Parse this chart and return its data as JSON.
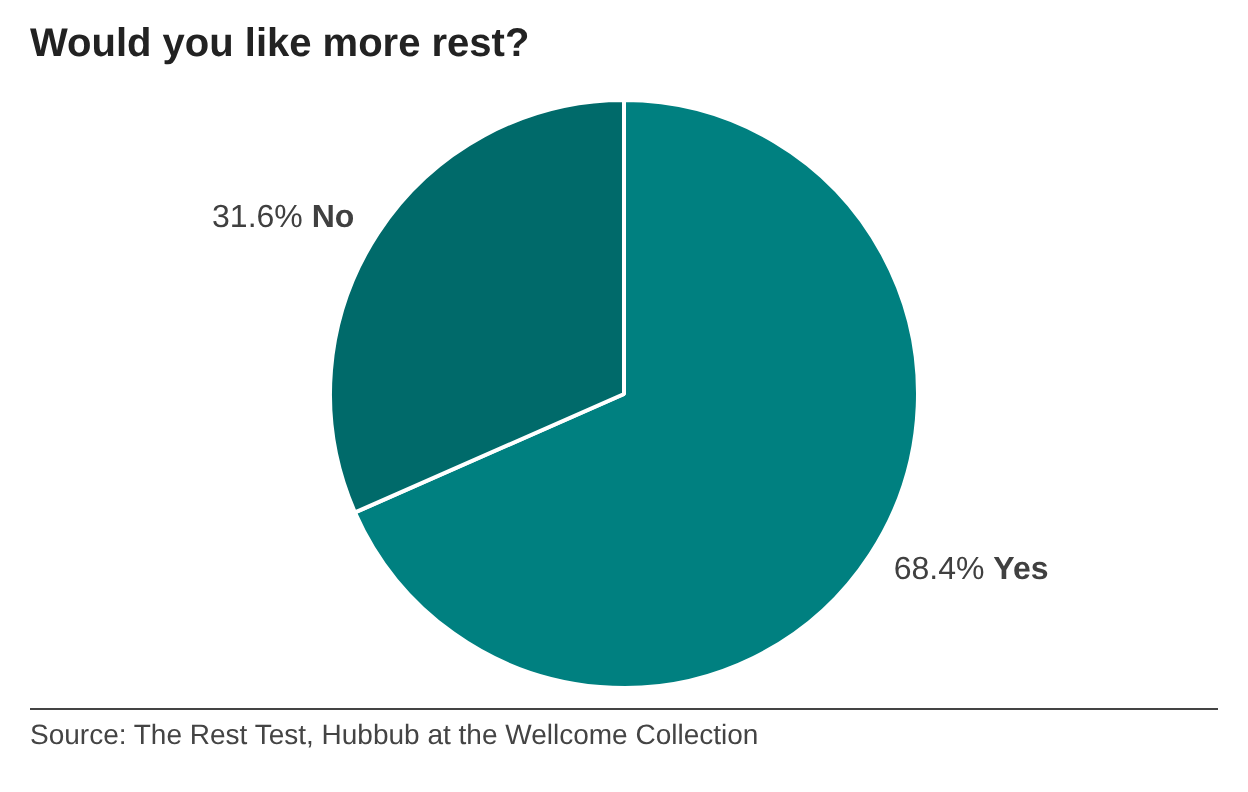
{
  "chart_data": {
    "type": "pie",
    "title": "Would you like more rest?",
    "categories": [
      "Yes",
      "No"
    ],
    "values": [
      68.4,
      31.6
    ],
    "colors": [
      "#008080",
      "#006a6a"
    ],
    "value_labels": [
      "68.4%",
      "31.6%"
    ],
    "annotations": [
      "Source: The Rest Test, Hubbub at the Wellcome Collection"
    ]
  }
}
